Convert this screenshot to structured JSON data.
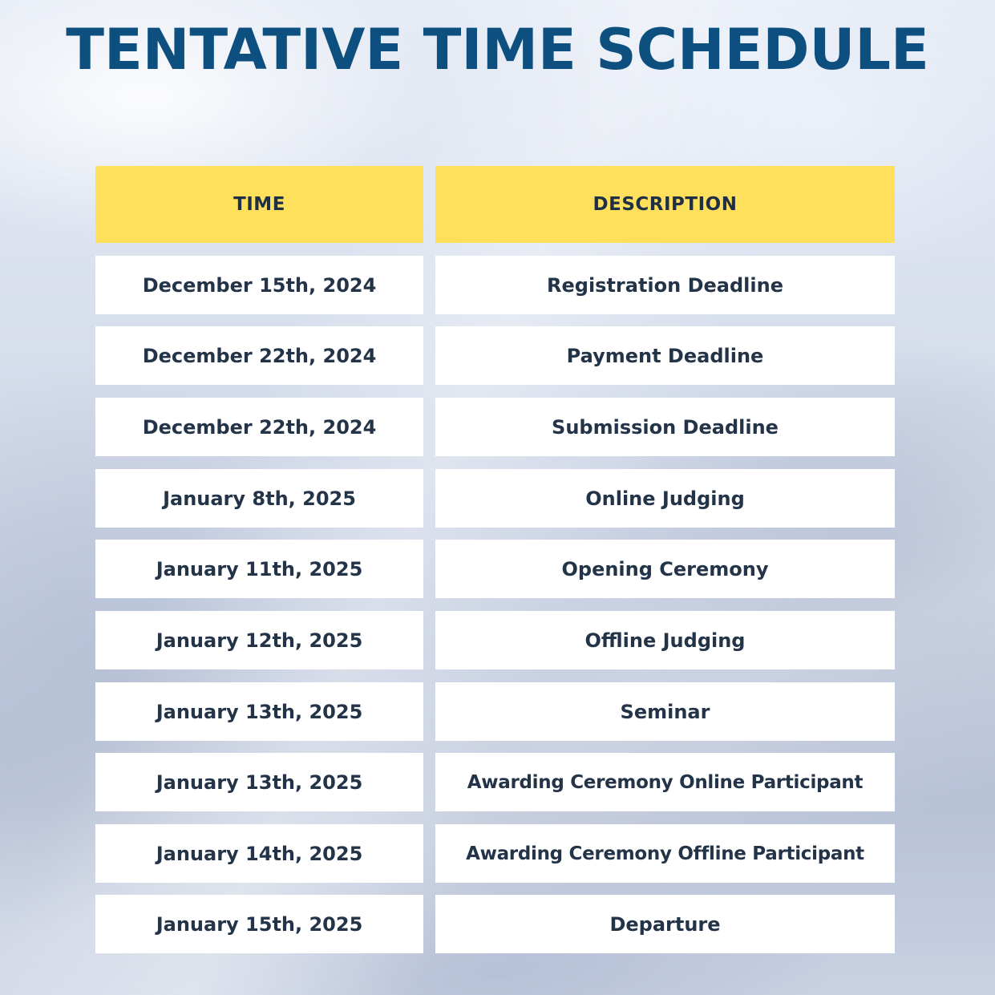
{
  "title": "TENTATIVE TIME SCHEDULE",
  "table": {
    "headers": {
      "time": "TIME",
      "description": "DESCRIPTION"
    },
    "rows": [
      {
        "time": "December 15th, 2024",
        "description": "Registration Deadline"
      },
      {
        "time": "December 22th, 2024",
        "description": "Payment Deadline"
      },
      {
        "time": "December 22th, 2024",
        "description": "Submission Deadline"
      },
      {
        "time": "January 8th, 2025",
        "description": "Online Judging"
      },
      {
        "time": "January 11th, 2025",
        "description": "Opening Ceremony"
      },
      {
        "time": "January 12th, 2025",
        "description": "Offline Judging"
      },
      {
        "time": "January 13th, 2025",
        "description": "Seminar"
      },
      {
        "time": "January 13th, 2025",
        "description": "Awarding Ceremony Online Participant"
      },
      {
        "time": "January 14th, 2025",
        "description": "Awarding Ceremony Offline Participant"
      },
      {
        "time": "January 15th, 2025",
        "description": "Departure"
      }
    ]
  },
  "colors": {
    "title": "#0d4f7e",
    "header_background": "#ffe05c",
    "cell_background": "#ffffff",
    "cell_text": "#243448"
  }
}
